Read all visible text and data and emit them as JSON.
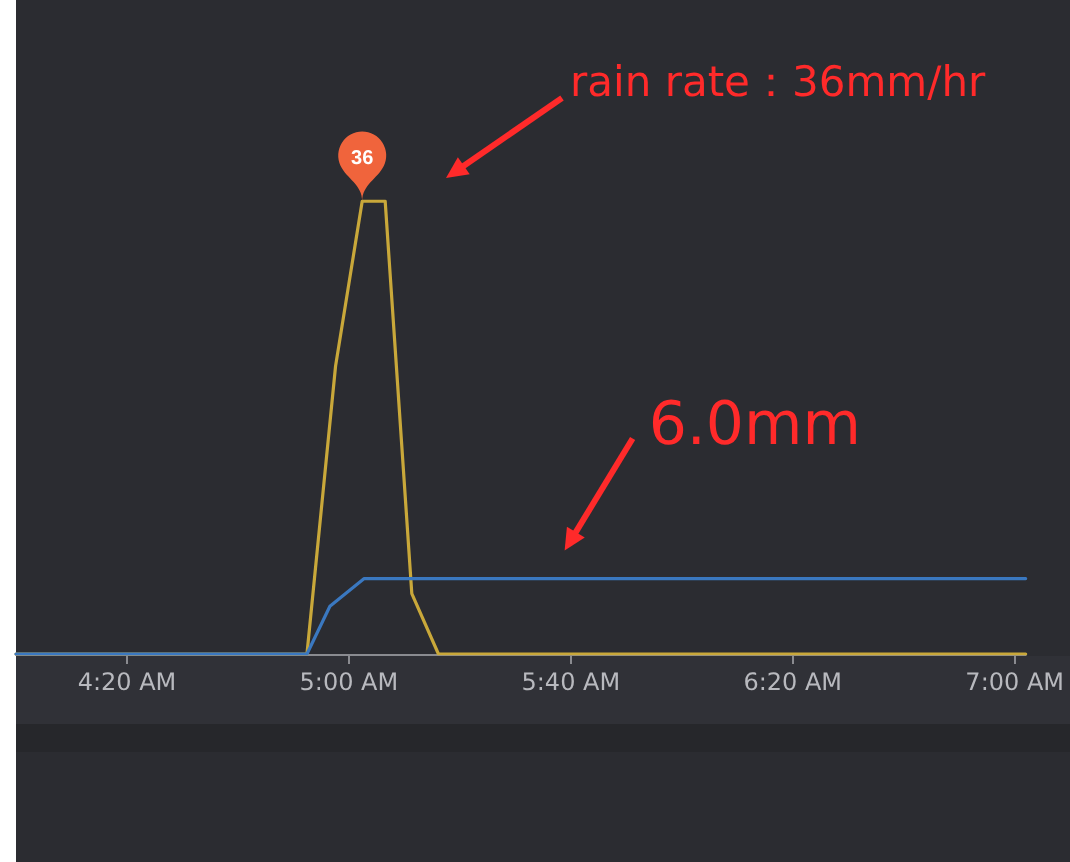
{
  "chart_data": {
    "type": "line",
    "series": [
      {
        "color": "#c9a83a",
        "x": [
          4.0,
          4.874,
          4.96,
          5.04,
          5.109,
          5.189,
          5.269,
          7.033
        ],
        "values": [
          0,
          0,
          22.9,
          36,
          36,
          4.8,
          0,
          0
        ],
        "value_labels": [
          null,
          null,
          null,
          "36",
          null,
          null,
          null,
          null
        ]
      },
      {
        "color": "#3a78c0",
        "x": [
          4.0,
          4.874,
          4.943,
          5.046,
          7.033
        ],
        "values": [
          0,
          0,
          3.8,
          6.0,
          6.0
        ]
      }
    ],
    "xlim": [
      4.0,
      7.033
    ],
    "xticks": [
      {
        "value": 4.3333,
        "label": "4:20 AM"
      },
      {
        "value": 5,
        "label": "5:00 AM"
      },
      {
        "value": 5.6667,
        "label": "5:40 AM"
      },
      {
        "value": 6.3333,
        "label": "6:20 AM"
      },
      {
        "value": 7,
        "label": "7:00 AM"
      }
    ],
    "ylim": [
      0,
      52
    ],
    "tick_labels": "x",
    "annotations": [
      "rain rate：36mm/hr",
      {
        "text": "6.0mm",
        "x": 5.6,
        "y": 6.0
      }
    ]
  }
}
